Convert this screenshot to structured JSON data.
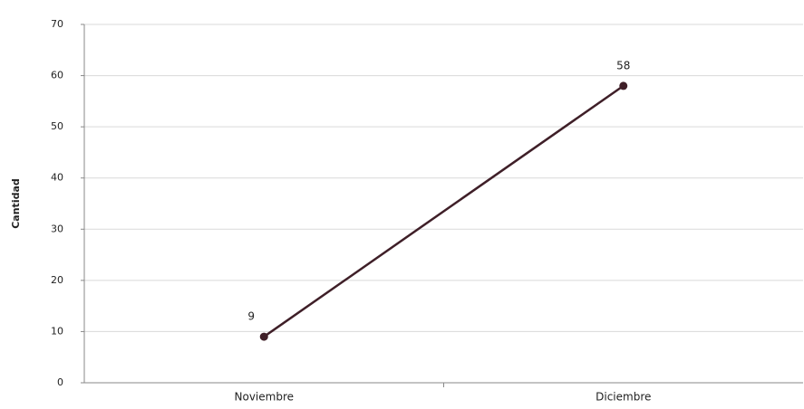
{
  "chart_data": {
    "type": "line",
    "y_label": "Cantidad",
    "categories": [
      "Noviembre",
      "Diciembre"
    ],
    "series": [
      {
        "color": "#3f1f28",
        "values": [
          9,
          58
        ]
      }
    ],
    "ylim": [
      0,
      70
    ],
    "yticks": [
      0,
      10,
      20,
      30,
      40,
      50,
      60,
      70
    ],
    "grid": true
  }
}
